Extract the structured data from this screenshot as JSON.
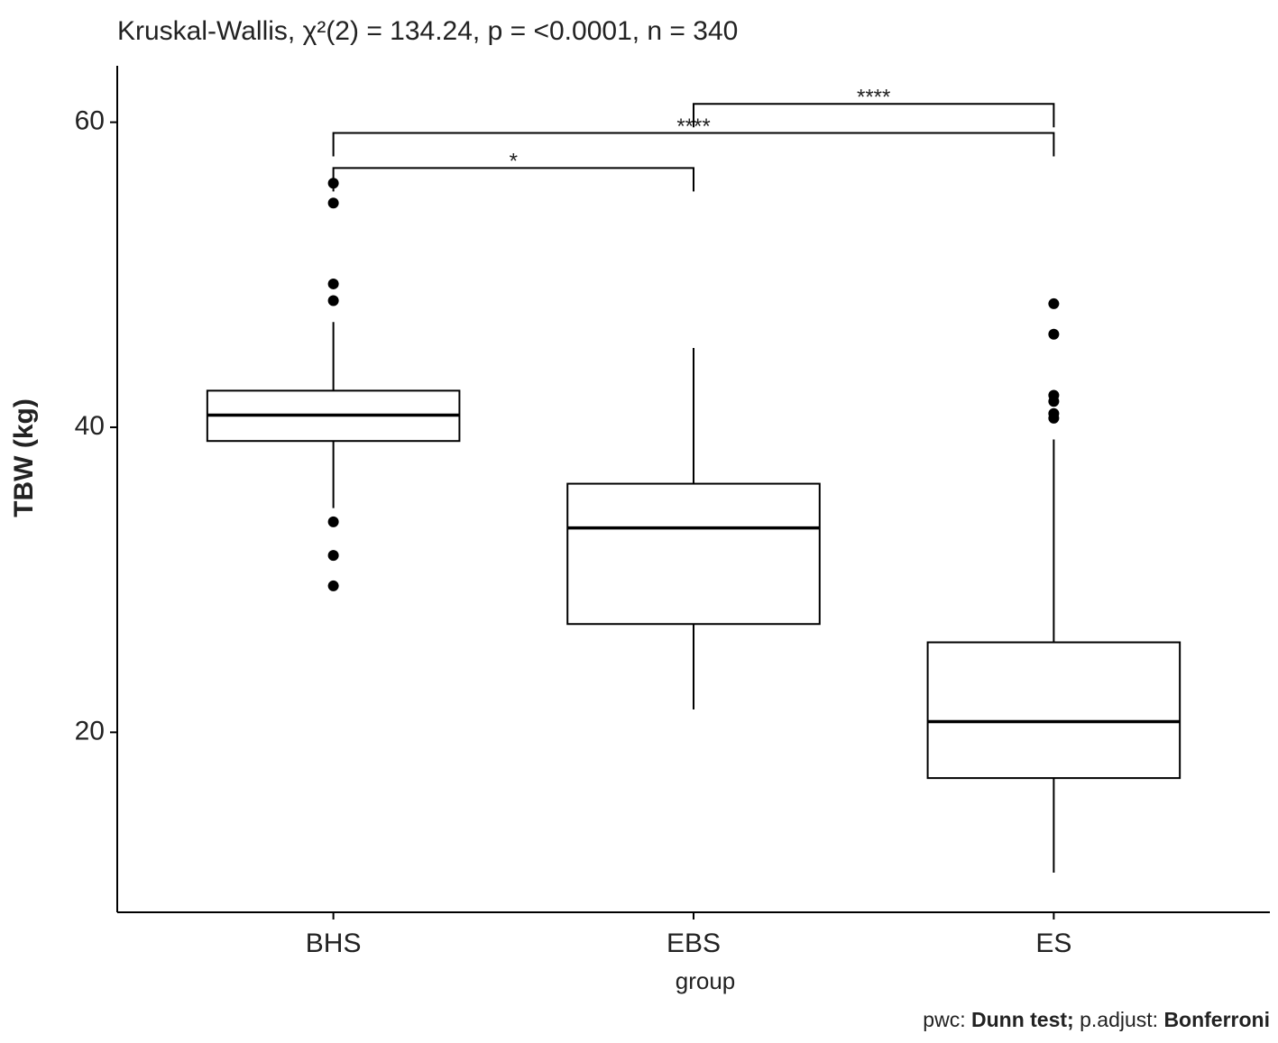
{
  "chart_data": {
    "type": "box",
    "title": "Kruskal-Wallis, χ²(2) = 134.24, p = <0.0001, n = 340",
    "x_label": "group",
    "y_label": "TBW (kg)",
    "caption": {
      "pwc_label": "pwc:",
      "pwc": "Dunn test;",
      "adjust_label": "p.adjust:",
      "adjust": "Bonferroni"
    },
    "categories": [
      "BHS",
      "EBS",
      "ES"
    ],
    "boxes": [
      {
        "min": 34.7,
        "q1": 39.1,
        "median": 40.8,
        "q3": 42.4,
        "max": 46.9,
        "outliers": [
          56.0,
          54.7,
          49.4,
          48.3,
          33.8,
          31.6,
          29.6
        ]
      },
      {
        "min": 21.5,
        "q1": 27.1,
        "median": 33.4,
        "q3": 36.3,
        "max": 45.2,
        "outliers": []
      },
      {
        "min": 10.8,
        "q1": 17.0,
        "median": 20.7,
        "q3": 25.9,
        "max": 39.2,
        "outliers": [
          48.1,
          46.1,
          42.1,
          41.7,
          40.9,
          40.6
        ]
      }
    ],
    "comparisons": [
      {
        "group1": "BHS",
        "group2": "EBS",
        "label": "*",
        "y": 57.0
      },
      {
        "group1": "BHS",
        "group2": "ES",
        "label": "****",
        "y": 59.3
      },
      {
        "group1": "EBS",
        "group2": "ES",
        "label": "****",
        "y": 61.2
      }
    ],
    "color": "#000000",
    "ylim": [
      8.2,
      63.7
    ],
    "yticks": [
      20,
      40,
      60
    ]
  }
}
